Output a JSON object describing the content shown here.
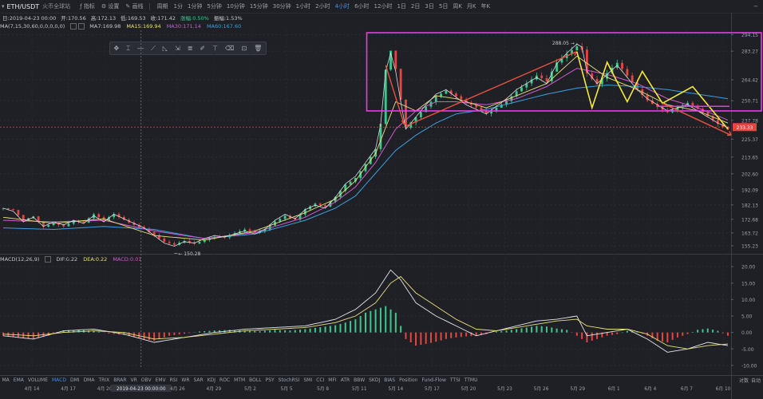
{
  "header": {
    "symbol": "ETH/USDT",
    "exchange": "火币全球站",
    "buttons": [
      {
        "icon": "indicator-icon",
        "label": "指标"
      },
      {
        "icon": "settings-icon",
        "label": "设置"
      },
      {
        "icon": "draw-icon",
        "label": "画线"
      }
    ],
    "period_label": "周期",
    "intervals": [
      "1分",
      "1分钟",
      "5分钟",
      "10分钟",
      "15分钟",
      "30分钟",
      "1小时",
      "2小时",
      "4小时",
      "6小时",
      "12小时",
      "1日",
      "2日",
      "3日",
      "5日",
      "周K",
      "月K",
      "年K"
    ],
    "active_interval": "4小时",
    "corner_icon": "−"
  },
  "info": {
    "date": "日:2019-04-23 00:00",
    "open": "开:170.56",
    "high": "高:172.13",
    "low": "低:169.53",
    "close": "收:171.42",
    "change": "涨幅:0.50%",
    "amplitude": "振幅:1.53%"
  },
  "ma_legend": [
    {
      "text": "MA(7,15,30,60,0,0,0,0,0)",
      "color": "#c4c6cc"
    },
    {
      "text": "MA7:169.98",
      "color": "#c4c6cc"
    },
    {
      "text": "MA15:169.94",
      "color": "#e8e07a"
    },
    {
      "text": "MA30:171.14",
      "color": "#d05ad0"
    },
    {
      "text": "MA60:167.60",
      "color": "#3aa0e0"
    }
  ],
  "macd_legend": [
    {
      "text": "MACD(12,26,9)",
      "color": "#c4c6cc"
    },
    {
      "text": "DIF:0.22",
      "color": "#c4c6cc"
    },
    {
      "text": "DEA:0.22",
      "color": "#e8e07a"
    },
    {
      "text": "MACD:0.01",
      "color": "#d05ad0"
    }
  ],
  "indicators": [
    "MA",
    "EMA",
    "VOLUME",
    "MACD",
    "DMI",
    "DMA",
    "TRIX",
    "BRAR",
    "VR",
    "OBV",
    "EMV",
    "RSI",
    "WR",
    "SAR",
    "KDJ",
    "ROC",
    "MTM",
    "BOLL",
    "PSY",
    "StochRSI",
    "SMI",
    "CCI",
    "MFI",
    "ATR",
    "BBW",
    "SKDJ",
    "BIAS",
    "Position",
    "Fund-Flow",
    "TTSI",
    "TTMU"
  ],
  "active_indicator": "MACD",
  "draw_tools": [
    "cursor-icon",
    "crosshair-icon",
    "hline-icon",
    "trendline-icon",
    "shape-icon",
    "measure-icon",
    "fib-icon",
    "pencil-icon",
    "text-icon",
    "eraser-icon",
    "lock-icon",
    "trash-icon"
  ],
  "chart_data": {
    "type": "candlestick",
    "symbol": "ETH/USDT",
    "interval": "4小时",
    "price_axis": {
      "ticks": [
        "294.15",
        "283.27",
        "264.42",
        "250.71",
        "237.78",
        "225.37",
        "213.65",
        "202.60",
        "192.09",
        "182.13",
        "172.68",
        "163.72",
        "155.23"
      ],
      "current_price": "233.33",
      "ylim": [
        150,
        297
      ]
    },
    "macd_axis": {
      "ticks": [
        "20.00",
        "15.00",
        "10.00",
        "5.00",
        "0.00",
        "-5.00",
        "-10.00"
      ],
      "ylim": [
        -11,
        21
      ]
    },
    "x_ticks": [
      "4月 14",
      "4月 17",
      "4月 20",
      "2019-04-23 00:00:00",
      "4月 26",
      "4月 29",
      "5月 2",
      "5月 5",
      "5月 8",
      "5月 11",
      "5月 14",
      "5月 17",
      "5月 20",
      "5月 23",
      "5月 26",
      "5月 29",
      "6月 1",
      "6月 4",
      "6月 7",
      "6月 10"
    ],
    "highlighted_x_tick": "2019-04-23 00:00:00",
    "annotations": [
      {
        "type": "label",
        "text": "150.28",
        "price": 150.28
      },
      {
        "type": "label",
        "text": "288.05",
        "price": 288.05
      }
    ],
    "bottom_right_controls": [
      "对数",
      "自动"
    ],
    "price_path": [
      [
        0,
        180
      ],
      [
        2,
        178
      ],
      [
        4,
        171
      ],
      [
        6,
        174
      ],
      [
        8,
        168
      ],
      [
        10,
        171
      ],
      [
        12,
        169
      ],
      [
        14,
        172
      ],
      [
        16,
        170
      ],
      [
        18,
        175
      ],
      [
        20,
        171
      ],
      [
        22,
        176
      ],
      [
        24,
        173
      ],
      [
        26,
        170
      ],
      [
        28,
        167
      ],
      [
        30,
        162
      ],
      [
        32,
        157
      ],
      [
        34,
        155
      ],
      [
        36,
        158
      ],
      [
        38,
        157
      ],
      [
        40,
        160
      ],
      [
        42,
        162
      ],
      [
        44,
        161
      ],
      [
        46,
        163
      ],
      [
        48,
        165
      ],
      [
        50,
        163
      ],
      [
        52,
        166
      ],
      [
        54,
        172
      ],
      [
        56,
        176
      ],
      [
        58,
        173
      ],
      [
        60,
        179
      ],
      [
        62,
        182
      ],
      [
        64,
        180
      ],
      [
        66,
        187
      ],
      [
        68,
        196
      ],
      [
        70,
        201
      ],
      [
        72,
        210
      ],
      [
        74,
        219
      ],
      [
        75,
        235
      ],
      [
        76,
        270
      ],
      [
        77,
        282
      ],
      [
        78,
        270
      ],
      [
        79,
        250
      ],
      [
        80,
        232
      ],
      [
        82,
        240
      ],
      [
        84,
        248
      ],
      [
        86,
        255
      ],
      [
        88,
        258
      ],
      [
        90,
        253
      ],
      [
        92,
        248
      ],
      [
        94,
        245
      ],
      [
        96,
        242
      ],
      [
        98,
        247
      ],
      [
        100,
        252
      ],
      [
        102,
        258
      ],
      [
        104,
        262
      ],
      [
        106,
        266
      ],
      [
        108,
        262
      ],
      [
        110,
        275
      ],
      [
        112,
        282
      ],
      [
        114,
        288
      ],
      [
        115,
        286
      ],
      [
        116,
        270
      ],
      [
        118,
        262
      ],
      [
        120,
        268
      ],
      [
        122,
        274
      ],
      [
        124,
        266
      ],
      [
        126,
        258
      ],
      [
        128,
        252
      ],
      [
        130,
        248
      ],
      [
        132,
        244
      ],
      [
        134,
        246
      ],
      [
        136,
        248
      ],
      [
        138,
        244
      ],
      [
        140,
        240
      ],
      [
        142,
        236
      ],
      [
        144,
        233
      ]
    ],
    "ma_slow_path": [
      [
        0,
        167
      ],
      [
        10,
        166
      ],
      [
        20,
        168
      ],
      [
        30,
        166
      ],
      [
        40,
        160
      ],
      [
        50,
        163
      ],
      [
        60,
        172
      ],
      [
        66,
        180
      ],
      [
        70,
        188
      ],
      [
        74,
        203
      ],
      [
        78,
        218
      ],
      [
        82,
        228
      ],
      [
        86,
        236
      ],
      [
        90,
        242
      ],
      [
        96,
        245
      ],
      [
        102,
        250
      ],
      [
        108,
        255
      ],
      [
        114,
        259
      ],
      [
        120,
        261
      ],
      [
        126,
        260
      ],
      [
        132,
        258
      ],
      [
        138,
        255
      ],
      [
        144,
        252
      ]
    ],
    "ma_mid_path": [
      [
        0,
        172
      ],
      [
        10,
        171
      ],
      [
        20,
        172
      ],
      [
        30,
        165
      ],
      [
        40,
        160
      ],
      [
        50,
        164
      ],
      [
        60,
        174
      ],
      [
        66,
        184
      ],
      [
        70,
        194
      ],
      [
        74,
        210
      ],
      [
        78,
        232
      ],
      [
        82,
        244
      ],
      [
        86,
        250
      ],
      [
        90,
        250
      ],
      [
        96,
        248
      ],
      [
        102,
        252
      ],
      [
        108,
        260
      ],
      [
        114,
        272
      ],
      [
        120,
        268
      ],
      [
        126,
        262
      ],
      [
        132,
        252
      ],
      [
        138,
        246
      ],
      [
        144,
        238
      ]
    ],
    "ma_fast_path": [
      [
        0,
        174
      ],
      [
        10,
        170
      ],
      [
        20,
        173
      ],
      [
        30,
        162
      ],
      [
        40,
        159
      ],
      [
        50,
        165
      ],
      [
        60,
        177
      ],
      [
        66,
        186
      ],
      [
        70,
        198
      ],
      [
        74,
        216
      ],
      [
        78,
        250
      ],
      [
        82,
        244
      ],
      [
        86,
        254
      ],
      [
        90,
        252
      ],
      [
        96,
        246
      ],
      [
        102,
        254
      ],
      [
        108,
        262
      ],
      [
        114,
        280
      ],
      [
        120,
        266
      ],
      [
        126,
        258
      ],
      [
        132,
        248
      ],
      [
        138,
        244
      ],
      [
        144,
        236
      ]
    ],
    "macd_dif": [
      [
        0,
        -1
      ],
      [
        6,
        -2
      ],
      [
        12,
        0.5
      ],
      [
        18,
        1
      ],
      [
        24,
        -0.5
      ],
      [
        30,
        -3
      ],
      [
        36,
        -1.5
      ],
      [
        42,
        0
      ],
      [
        48,
        1
      ],
      [
        54,
        1.5
      ],
      [
        60,
        2
      ],
      [
        66,
        4
      ],
      [
        70,
        7
      ],
      [
        74,
        12
      ],
      [
        77,
        19
      ],
      [
        79,
        16
      ],
      [
        82,
        9
      ],
      [
        86,
        5
      ],
      [
        90,
        2
      ],
      [
        94,
        -1
      ],
      [
        98,
        0.5
      ],
      [
        102,
        2
      ],
      [
        106,
        3.5
      ],
      [
        110,
        4
      ],
      [
        114,
        5
      ],
      [
        116,
        -1
      ],
      [
        120,
        0
      ],
      [
        124,
        1
      ],
      [
        128,
        -2
      ],
      [
        132,
        -6
      ],
      [
        136,
        -5
      ],
      [
        140,
        -3
      ],
      [
        144,
        -4
      ]
    ],
    "macd_dea": [
      [
        0,
        -0.5
      ],
      [
        6,
        -1
      ],
      [
        12,
        0
      ],
      [
        18,
        0.5
      ],
      [
        24,
        0
      ],
      [
        30,
        -2
      ],
      [
        36,
        -1.5
      ],
      [
        42,
        -0.5
      ],
      [
        48,
        0.5
      ],
      [
        54,
        1
      ],
      [
        60,
        1.5
      ],
      [
        66,
        3
      ],
      [
        70,
        5
      ],
      [
        74,
        9
      ],
      [
        77,
        15
      ],
      [
        79,
        17
      ],
      [
        82,
        12
      ],
      [
        86,
        8
      ],
      [
        90,
        4
      ],
      [
        94,
        1
      ],
      [
        98,
        0.5
      ],
      [
        102,
        1.5
      ],
      [
        106,
        2.5
      ],
      [
        110,
        3.5
      ],
      [
        114,
        4
      ],
      [
        116,
        2
      ],
      [
        120,
        1
      ],
      [
        124,
        1
      ],
      [
        128,
        -0.5
      ],
      [
        132,
        -4
      ],
      [
        136,
        -5
      ],
      [
        140,
        -4
      ],
      [
        144,
        -3.5
      ]
    ],
    "macd_hist": [
      [
        0,
        -1
      ],
      [
        3,
        -1.5
      ],
      [
        6,
        -2
      ],
      [
        9,
        -1
      ],
      [
        12,
        0.6
      ],
      [
        15,
        0.8
      ],
      [
        18,
        0.5
      ],
      [
        21,
        -0.3
      ],
      [
        24,
        -0.8
      ],
      [
        27,
        -1.8
      ],
      [
        30,
        -2.5
      ],
      [
        33,
        -1
      ],
      [
        36,
        -0.4
      ],
      [
        39,
        0.3
      ],
      [
        42,
        0.6
      ],
      [
        45,
        0.8
      ],
      [
        48,
        0.6
      ],
      [
        51,
        0.4
      ],
      [
        54,
        0.8
      ],
      [
        57,
        0.6
      ],
      [
        60,
        1
      ],
      [
        63,
        1.6
      ],
      [
        66,
        2.2
      ],
      [
        68,
        3
      ],
      [
        70,
        4
      ],
      [
        72,
        6
      ],
      [
        74,
        7
      ],
      [
        76,
        8
      ],
      [
        78,
        6
      ],
      [
        80,
        -2
      ],
      [
        82,
        -4
      ],
      [
        84,
        -3.5
      ],
      [
        86,
        -2.8
      ],
      [
        88,
        -2
      ],
      [
        90,
        -1.5
      ],
      [
        92,
        -1.2
      ],
      [
        94,
        -1
      ],
      [
        96,
        -0.5
      ],
      [
        98,
        0.3
      ],
      [
        100,
        0.6
      ],
      [
        102,
        1
      ],
      [
        104,
        1.5
      ],
      [
        106,
        2
      ],
      [
        108,
        1.8
      ],
      [
        110,
        1.2
      ],
      [
        112,
        0.8
      ],
      [
        114,
        -1
      ],
      [
        116,
        -3
      ],
      [
        118,
        -2
      ],
      [
        120,
        -1
      ],
      [
        122,
        -0.5
      ],
      [
        124,
        0.5
      ],
      [
        126,
        0.3
      ],
      [
        128,
        -1
      ],
      [
        130,
        -2.5
      ],
      [
        132,
        -3
      ],
      [
        134,
        -1.5
      ],
      [
        136,
        -0.5
      ],
      [
        138,
        0.8
      ],
      [
        140,
        1.2
      ],
      [
        142,
        0.5
      ],
      [
        144,
        -1
      ]
    ]
  }
}
